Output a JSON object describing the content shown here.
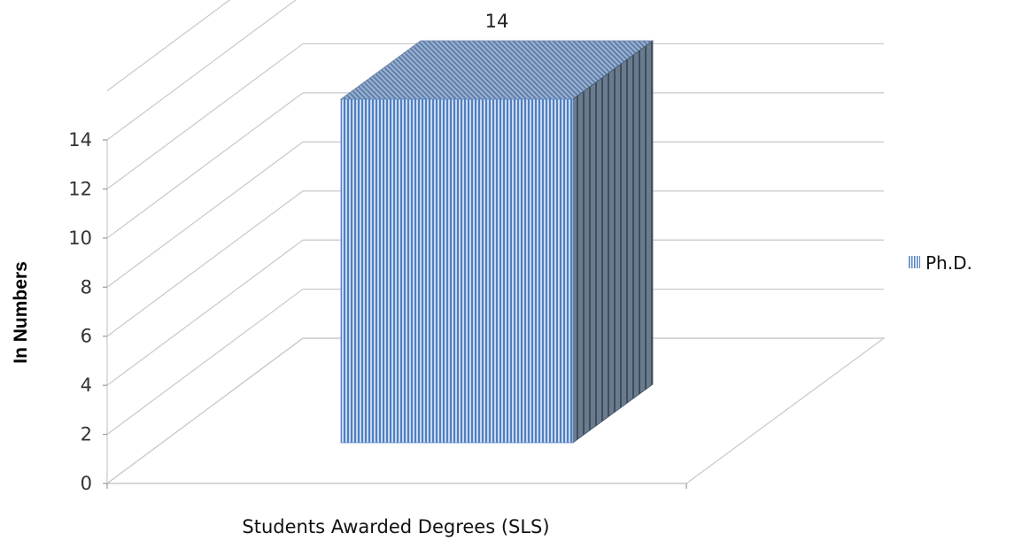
{
  "chart_data": {
    "type": "bar",
    "categories": [
      "Students Awarded Degrees (SLS)"
    ],
    "series": [
      {
        "name": "Ph.D.",
        "values": [
          14
        ]
      }
    ],
    "xlabel": "Students Awarded Degrees (SLS)",
    "ylabel": "In Numbers",
    "ylim": [
      0,
      14
    ],
    "yticks": [
      0,
      2,
      4,
      6,
      8,
      10,
      12,
      14
    ],
    "data_labels": [
      "14"
    ],
    "grid": true,
    "legend": "right",
    "colors": {
      "front": "#8fb3de",
      "stripe": "#5b87c4",
      "side": "#5f6f82",
      "top": "#8aa2c4"
    }
  }
}
